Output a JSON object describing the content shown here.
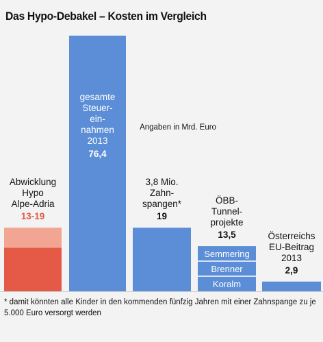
{
  "title": "Das Hypo-Debakel – Kosten im Vergleich",
  "footnote": "* damit könnten alle Kinder in den kommenden fünfzig Jahren mit einer Zahnspange zu je 5.000 Euro versorgt werden",
  "colors": {
    "background": "#f3f3f3",
    "blue": "#5b8ed6",
    "red_dark": "#e45a46",
    "red_light": "#f1a592",
    "accent_text": "#e45a46",
    "baseline": "#cfcfcf",
    "segment_divider": "#ffffff"
  },
  "chart_data": {
    "type": "bar",
    "title": "Das Hypo-Debakel – Kosten im Vergleich",
    "unit_note": "Angaben in Mrd. Euro",
    "ylim": [
      0,
      80
    ],
    "grid": false,
    "legend": "none",
    "bars": [
      {
        "id": "hypo",
        "label_lines": [
          "Abwicklung",
          "Hypo",
          "Alpe-Adria"
        ],
        "value_label": "13-19",
        "value_min": 13,
        "value_max": 19,
        "label_position": "above",
        "value_color": "#e45a46"
      },
      {
        "id": "steuer",
        "label_lines": [
          "gesamte",
          "Steuer-",
          "ein-",
          "nahmen",
          "2013"
        ],
        "value_label": "76,4",
        "value": 76.4,
        "label_position": "inside"
      },
      {
        "id": "zahnspangen",
        "label_lines": [
          "3,8 Mio.",
          "Zahn-",
          "spangen*"
        ],
        "value_label": "19",
        "value": 19,
        "label_position": "above"
      },
      {
        "id": "oebb",
        "label_lines": [
          "ÖBB-",
          "Tunnel-",
          "projekte"
        ],
        "value_label": "13,5",
        "value": 13.5,
        "label_position": "above",
        "segments": [
          {
            "label": "Semmering"
          },
          {
            "label": "Brenner"
          },
          {
            "label": "Koralm"
          }
        ]
      },
      {
        "id": "eu",
        "label_lines": [
          "Österreichs",
          "EU-Beitrag",
          "2013"
        ],
        "value_label": "2,9",
        "value": 2.9,
        "label_position": "above"
      }
    ]
  }
}
